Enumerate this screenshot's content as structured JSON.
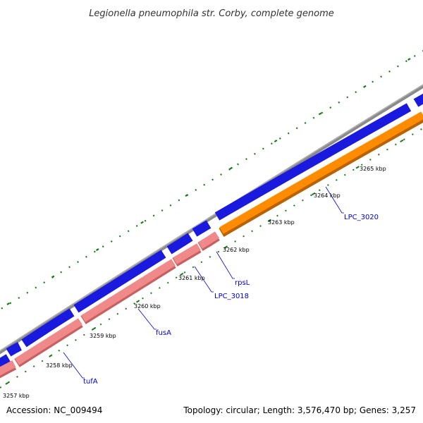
{
  "title": "Legionella pneumophila str. Corby, complete genome",
  "footer": {
    "accession": "Accession: NC_009494",
    "summary": "Topology: circular; Length: 3,576,470 bp; Genes: 3,257"
  },
  "kbp_labels": [
    "3257 kbp",
    "3258 kbp",
    "3259 kbp",
    "3260 kbp",
    "3261 kbp",
    "3262 kbp",
    "3263 kbp",
    "3264 kbp",
    "3265 kbp"
  ],
  "gene_labels": [
    "tufA",
    "fusA",
    "LPC_3018",
    "rpsL",
    "LPC_3020"
  ],
  "colors": {
    "backbone": "#8a8a8a",
    "gene_forward": "#1a1adf",
    "gene_rna_pink": "#f08080",
    "gene_orange": "#ff8c00",
    "tick": "#1a7a1a",
    "label_blue": "#0000cc"
  }
}
